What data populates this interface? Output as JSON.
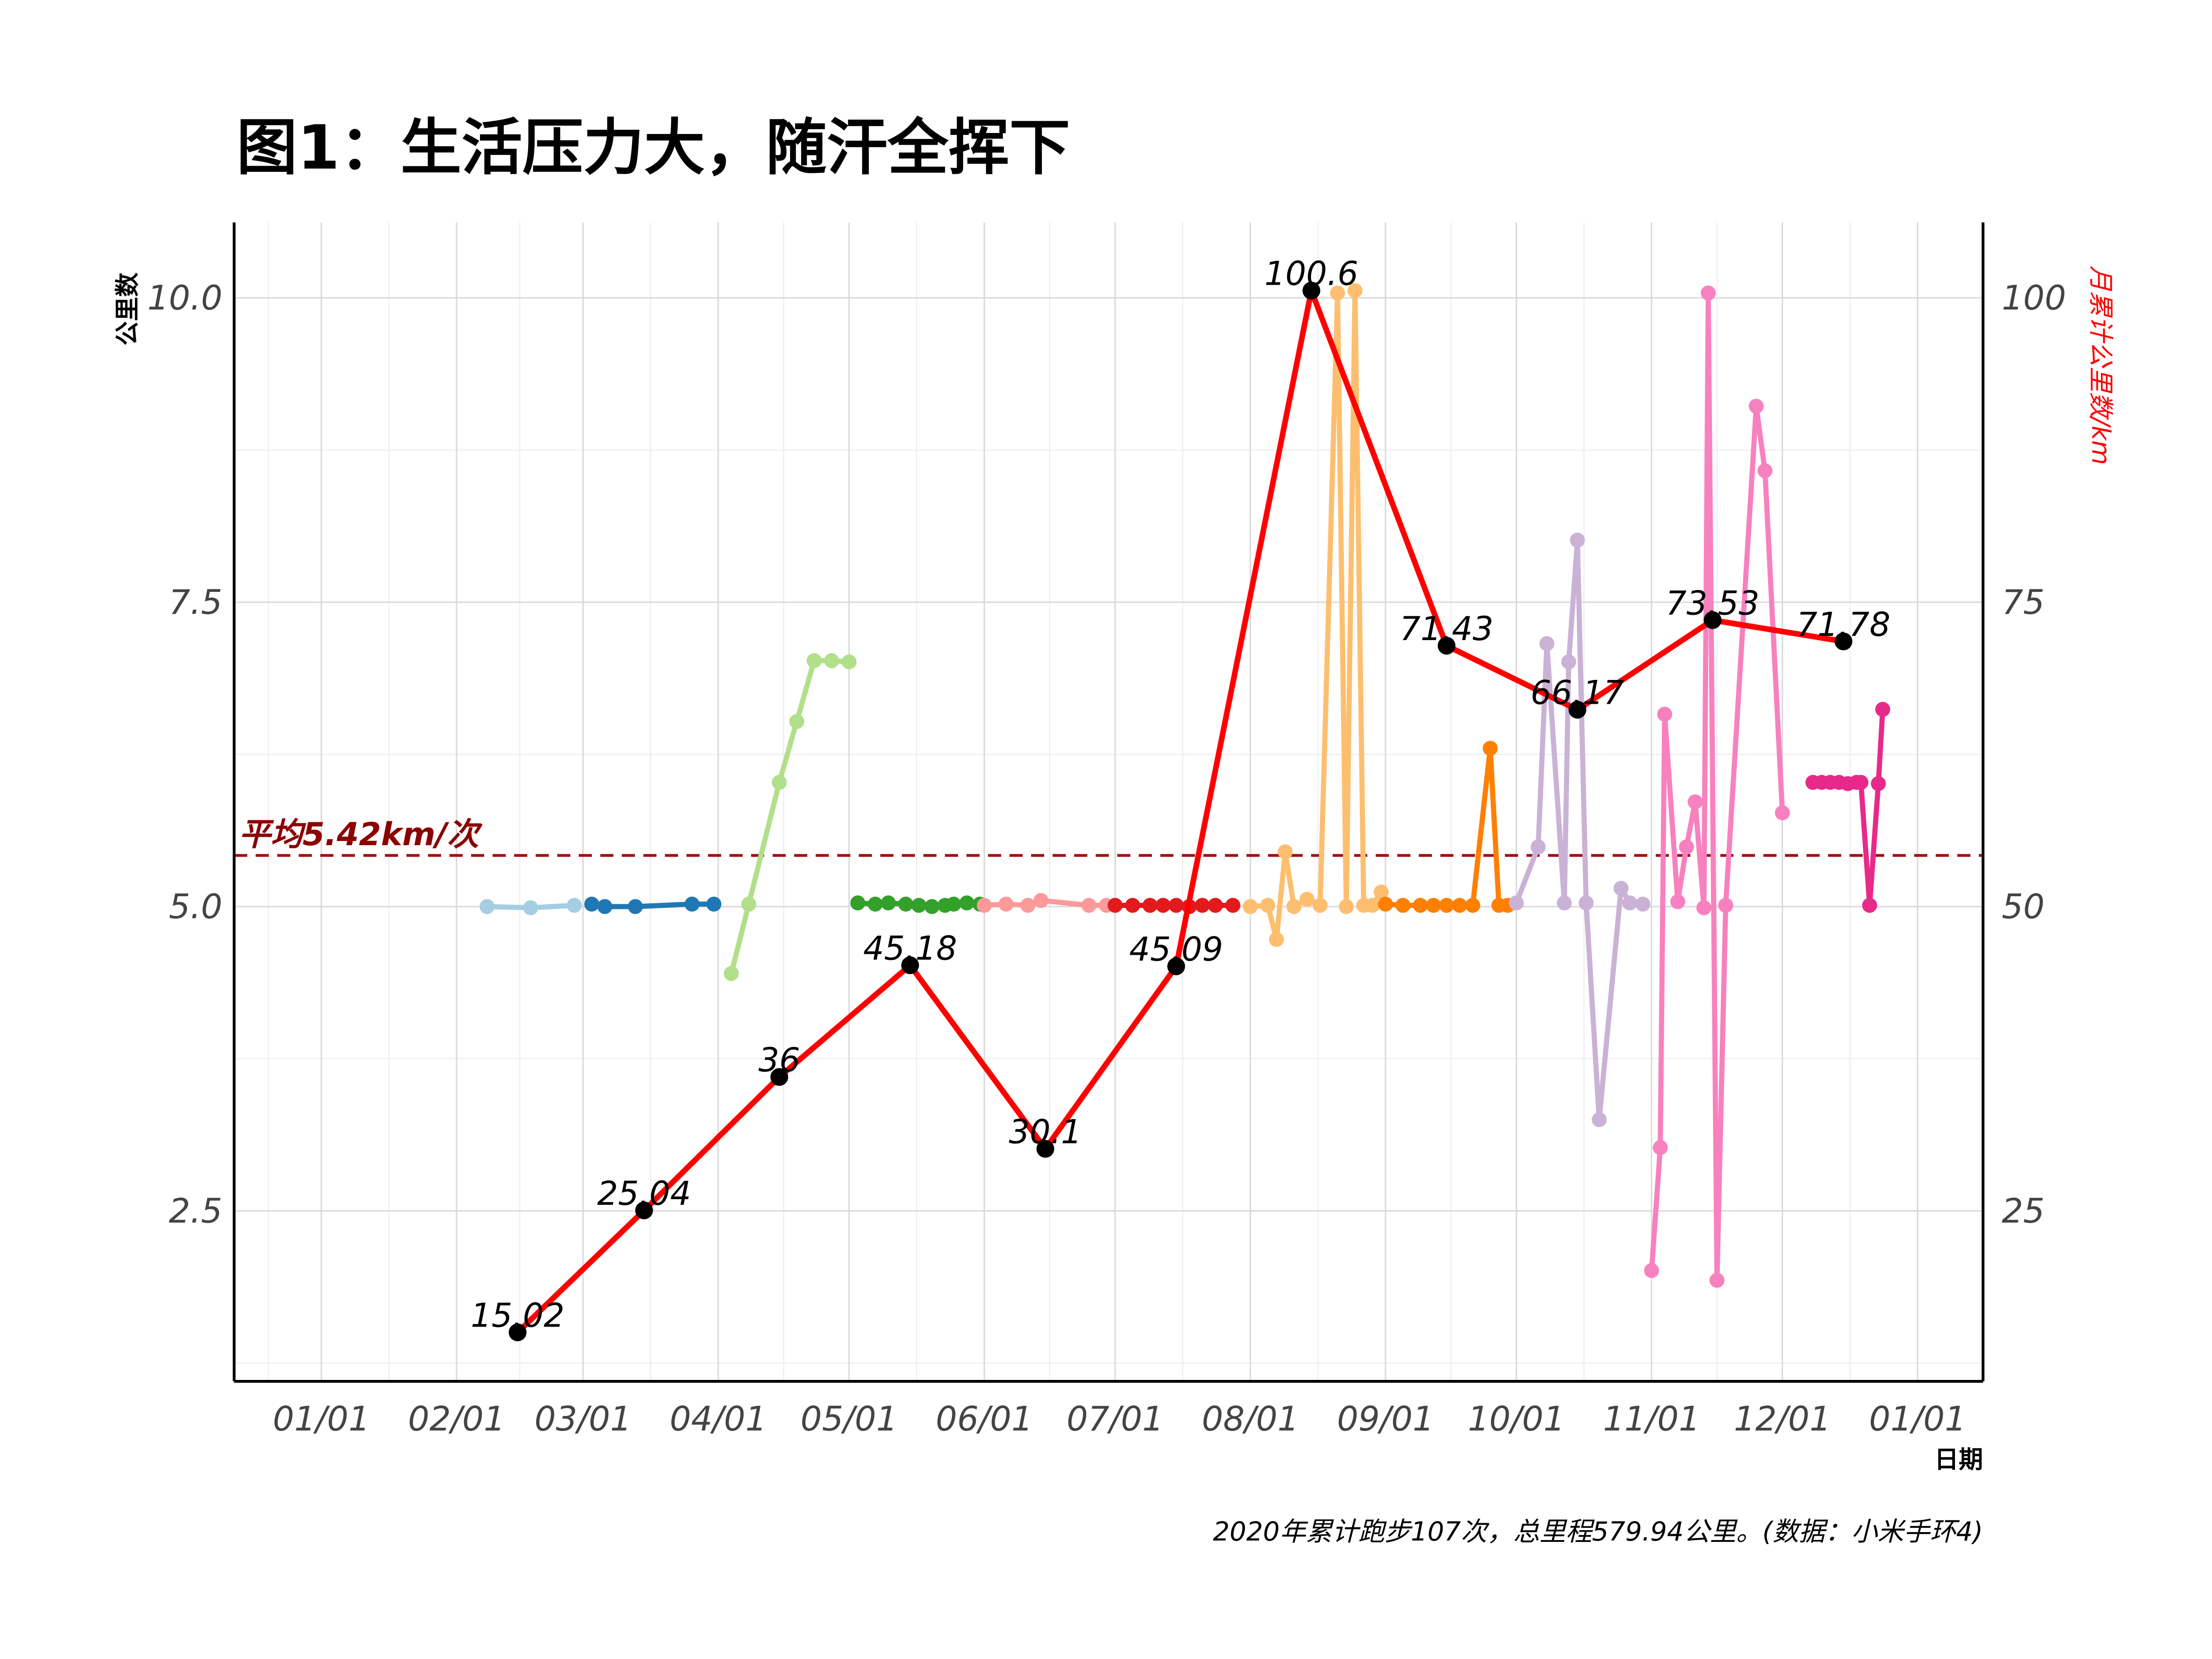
{
  "chart_data": {
    "type": "line",
    "title": "图1：生活压力大，随汗全挥下",
    "ylabel": "公里数",
    "ylabel_right": "月累计公里数/km",
    "xlabel": "日期",
    "caption": "2020年累计跑步107次，总里程579.94公里。(数据：小米手环4)",
    "x_ticks": [
      "01/01",
      "02/01",
      "03/01",
      "04/01",
      "05/01",
      "06/01",
      "07/01",
      "08/01",
      "09/01",
      "10/01",
      "11/01",
      "12/01",
      "01/01"
    ],
    "y_ticks": [
      "2.5",
      "5.0",
      "7.5",
      "10.0"
    ],
    "y_ticks_right": [
      "25",
      "50",
      "75",
      "100"
    ],
    "ylim": [
      1.1,
      10.62
    ],
    "ylim_right": [
      11,
      106.2
    ],
    "grid": true,
    "average": {
      "value": 5.42,
      "label": "平均5.42km/次",
      "color": "#a50f15"
    },
    "colors": {
      "monthly_line": "#ff0000",
      "monthly_point": "#000000",
      "month_series": [
        "#a6cee3",
        "#1f78b4",
        "#b2df8a",
        "#33a02c",
        "#fb9a99",
        "#e31a1c",
        "#fdbf6f",
        "#ff7f00",
        "#cab2d6",
        "#f781bf",
        "#e7298a"
      ]
    },
    "monthly_cumulative": {
      "x": [
        "2020-02-15",
        "2020-03-15",
        "2020-04-15",
        "2020-05-15",
        "2020-06-15",
        "2020-07-15",
        "2020-08-15",
        "2020-09-15",
        "2020-10-15",
        "2020-11-15",
        "2020-12-15"
      ],
      "values": [
        15.02,
        25.04,
        36,
        45.18,
        30.1,
        45.09,
        100.6,
        71.43,
        66.17,
        73.53,
        71.78
      ],
      "labels": [
        "15.02",
        "25.04",
        "36",
        "45.18",
        "30.1",
        "45.09",
        "100.6",
        "71.43",
        "66.17",
        "73.53",
        "71.78"
      ]
    },
    "series": [
      {
        "x": [
          "2020-02-08",
          "2020-02-18",
          "2020-02-28"
        ],
        "values": [
          5.0,
          4.99,
          5.01
        ]
      },
      {
        "x": [
          "2020-03-03",
          "2020-03-06",
          "2020-03-13",
          "2020-03-26",
          "2020-03-31"
        ],
        "values": [
          5.02,
          5.0,
          5.0,
          5.02,
          5.02
        ]
      },
      {
        "x": [
          "2020-04-04",
          "2020-04-08",
          "2020-04-15",
          "2020-04-19",
          "2020-04-23",
          "2020-04-27",
          "2020-05-01"
        ],
        "values": [
          4.45,
          5.02,
          6.02,
          6.52,
          7.02,
          7.02,
          7.01
        ]
      },
      {
        "x": [
          "2020-05-03",
          "2020-05-07",
          "2020-05-10",
          "2020-05-14",
          "2020-05-17",
          "2020-05-20",
          "2020-05-23",
          "2020-05-25",
          "2020-05-28",
          "2020-05-31"
        ],
        "values": [
          5.03,
          5.02,
          5.03,
          5.02,
          5.01,
          5.0,
          5.01,
          5.02,
          5.03,
          5.02
        ]
      },
      {
        "x": [
          "2020-06-01",
          "2020-06-06",
          "2020-06-11",
          "2020-06-14",
          "2020-06-25",
          "2020-06-29"
        ],
        "values": [
          5.01,
          5.02,
          5.01,
          5.05,
          5.01,
          5.01
        ]
      },
      {
        "x": [
          "2020-07-01",
          "2020-07-05",
          "2020-07-09",
          "2020-07-12",
          "2020-07-15",
          "2020-07-18",
          "2020-07-21",
          "2020-07-24",
          "2020-07-28"
        ],
        "values": [
          5.01,
          5.01,
          5.01,
          5.01,
          5.01,
          5.0,
          5.01,
          5.01,
          5.01
        ]
      },
      {
        "x": [
          "2020-08-01",
          "2020-08-05",
          "2020-08-07",
          "2020-08-09",
          "2020-08-11",
          "2020-08-14",
          "2020-08-17",
          "2020-08-21",
          "2020-08-23",
          "2020-08-25",
          "2020-08-27",
          "2020-08-29",
          "2020-08-31"
        ],
        "values": [
          5.0,
          5.01,
          4.73,
          5.45,
          5.0,
          5.06,
          5.01,
          10.04,
          5.0,
          10.06,
          5.01,
          5.01,
          5.12
        ]
      },
      {
        "x": [
          "2020-09-01",
          "2020-09-05",
          "2020-09-09",
          "2020-09-12",
          "2020-09-15",
          "2020-09-18",
          "2020-09-21",
          "2020-09-25",
          "2020-09-27",
          "2020-09-29"
        ],
        "values": [
          5.02,
          5.01,
          5.01,
          5.01,
          5.01,
          5.01,
          5.01,
          6.3,
          5.01,
          5.01
        ]
      },
      {
        "x": [
          "2020-10-01",
          "2020-10-06",
          "2020-10-08",
          "2020-10-12",
          "2020-10-13",
          "2020-10-15",
          "2020-10-17",
          "2020-10-20",
          "2020-10-25",
          "2020-10-27",
          "2020-10-30"
        ],
        "values": [
          5.03,
          5.49,
          7.16,
          5.03,
          7.01,
          8.01,
          5.03,
          3.25,
          5.15,
          5.03,
          5.02
        ]
      },
      {
        "x": [
          "2020-11-01",
          "2020-11-03",
          "2020-11-04",
          "2020-11-07",
          "2020-11-09",
          "2020-11-11",
          "2020-11-13",
          "2020-11-14",
          "2020-11-16",
          "2020-11-18",
          "2020-11-25",
          "2020-11-27",
          "2020-12-01"
        ],
        "values": [
          2.01,
          3.02,
          6.58,
          5.04,
          5.49,
          5.86,
          4.99,
          10.04,
          1.93,
          5.01,
          9.11,
          8.58,
          5.77
        ]
      },
      {
        "x": [
          "2020-12-08",
          "2020-12-10",
          "2020-12-12",
          "2020-12-14",
          "2020-12-16",
          "2020-12-18",
          "2020-12-19",
          "2020-12-21",
          "2020-12-23",
          "2020-12-24"
        ],
        "values": [
          6.02,
          6.02,
          6.02,
          6.02,
          6.01,
          6.02,
          6.02,
          5.01,
          6.01,
          6.62
        ]
      }
    ]
  }
}
